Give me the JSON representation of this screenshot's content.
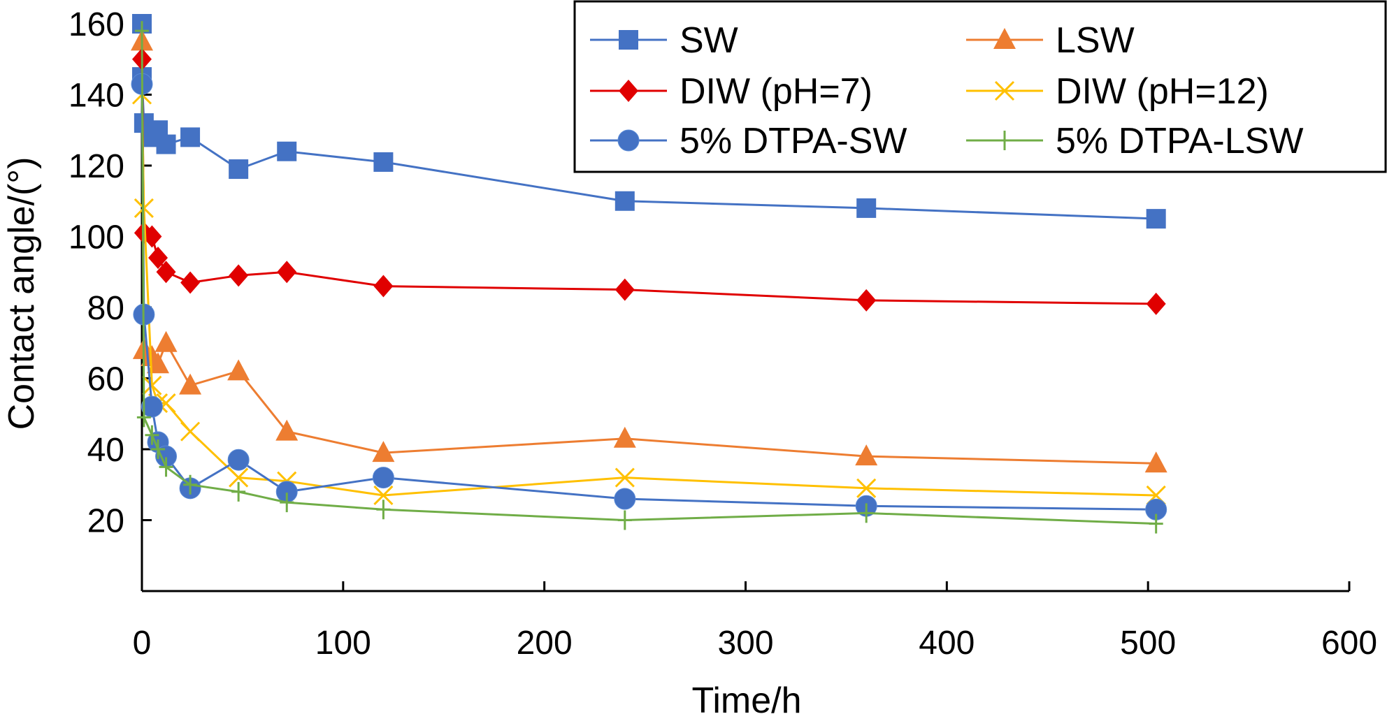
{
  "chart_data": {
    "type": "line",
    "xlabel": "Time/h",
    "ylabel": "Contact angle/(°)",
    "xlim": [
      0,
      600
    ],
    "ylim": [
      0,
      160
    ],
    "x_ticks": [
      0,
      100,
      200,
      300,
      400,
      500,
      600
    ],
    "y_ticks": [
      20,
      40,
      60,
      80,
      100,
      120,
      140,
      160
    ],
    "grid": false,
    "legend_position": "top-right",
    "series": [
      {
        "name": "SW",
        "color": "#4472C4",
        "marker": "square",
        "points": [
          [
            0,
            160
          ],
          [
            0,
            145
          ],
          [
            1,
            132
          ],
          [
            5,
            128
          ],
          [
            8,
            130
          ],
          [
            12,
            126
          ],
          [
            24,
            128
          ],
          [
            48,
            119
          ],
          [
            72,
            124
          ],
          [
            120,
            121
          ],
          [
            240,
            110
          ],
          [
            360,
            108
          ],
          [
            504,
            105
          ]
        ]
      },
      {
        "name": "LSW",
        "color": "#ED7D31",
        "marker": "triangle",
        "points": [
          [
            0,
            155
          ],
          [
            1,
            68
          ],
          [
            5,
            66
          ],
          [
            8,
            64
          ],
          [
            12,
            70
          ],
          [
            24,
            58
          ],
          [
            48,
            62
          ],
          [
            72,
            45
          ],
          [
            120,
            39
          ],
          [
            240,
            43
          ],
          [
            360,
            38
          ],
          [
            504,
            36
          ]
        ]
      },
      {
        "name": "DIW (pH=7)",
        "color": "#E00000",
        "marker": "diamond",
        "points": [
          [
            0,
            150
          ],
          [
            1,
            101
          ],
          [
            5,
            100
          ],
          [
            8,
            94
          ],
          [
            12,
            90
          ],
          [
            24,
            87
          ],
          [
            48,
            89
          ],
          [
            72,
            90
          ],
          [
            120,
            86
          ],
          [
            240,
            85
          ],
          [
            360,
            82
          ],
          [
            504,
            81
          ]
        ]
      },
      {
        "name": "DIW (pH=12)",
        "color": "#FFC000",
        "marker": "x",
        "points": [
          [
            0,
            140
          ],
          [
            1,
            108
          ],
          [
            5,
            58
          ],
          [
            8,
            53
          ],
          [
            12,
            53
          ],
          [
            24,
            45
          ],
          [
            48,
            32
          ],
          [
            72,
            31
          ],
          [
            120,
            27
          ],
          [
            240,
            32
          ],
          [
            360,
            29
          ],
          [
            504,
            27
          ]
        ]
      },
      {
        "name": "5% DTPA-SW",
        "color": "#4472C4",
        "marker": "circle",
        "points": [
          [
            0,
            143
          ],
          [
            1,
            78
          ],
          [
            5,
            52
          ],
          [
            8,
            42
          ],
          [
            12,
            38
          ],
          [
            24,
            29
          ],
          [
            48,
            37
          ],
          [
            72,
            28
          ],
          [
            120,
            32
          ],
          [
            240,
            26
          ],
          [
            360,
            24
          ],
          [
            504,
            23
          ]
        ]
      },
      {
        "name": "5% DTPA-LSW",
        "color": "#70AD47",
        "marker": "plus",
        "points": [
          [
            0,
            158
          ],
          [
            1,
            49
          ],
          [
            5,
            44
          ],
          [
            8,
            40
          ],
          [
            12,
            35
          ],
          [
            24,
            30
          ],
          [
            48,
            28
          ],
          [
            72,
            25
          ],
          [
            120,
            23
          ],
          [
            240,
            20
          ],
          [
            360,
            22
          ],
          [
            504,
            19
          ]
        ]
      }
    ]
  }
}
